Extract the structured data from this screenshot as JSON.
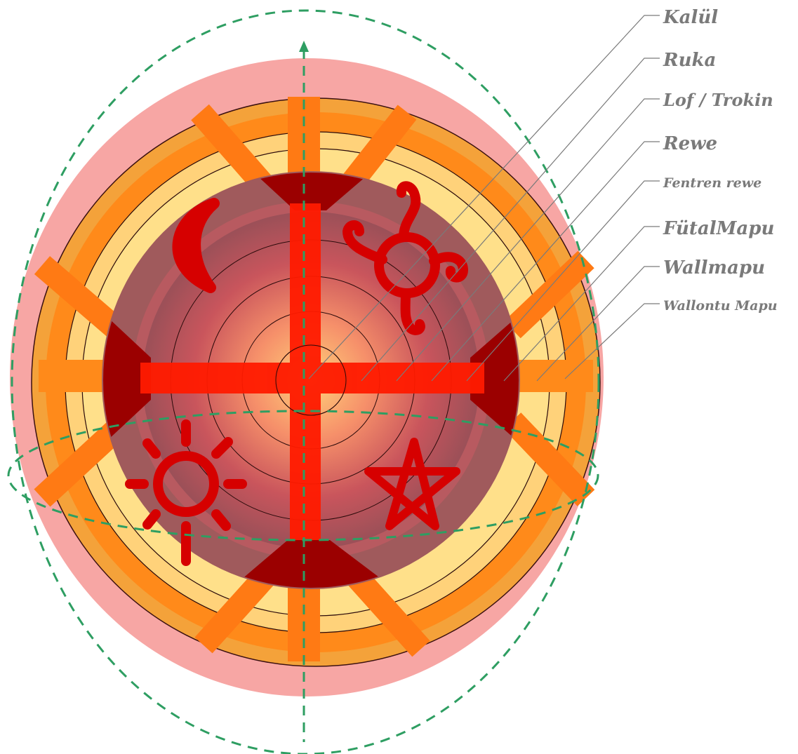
{
  "diagram": {
    "labels": [
      {
        "id": "kalul",
        "text": "Kalül"
      },
      {
        "id": "ruka",
        "text": "Ruka"
      },
      {
        "id": "lof",
        "text": "Lof / Trokin"
      },
      {
        "id": "rewe",
        "text": "Rewe"
      },
      {
        "id": "fentren",
        "text": "Fentren rewe"
      },
      {
        "id": "futal",
        "text": "FütalMapu"
      },
      {
        "id": "wallmapu",
        "text": "Wallmapu"
      },
      {
        "id": "wallontu",
        "text": "Wallontu Mapu"
      }
    ],
    "symbols": [
      "moon-icon",
      "spiral-icon",
      "sun-icon",
      "star-icon"
    ],
    "colors": {
      "halo": "#f7a6a4",
      "outer_ring": "#ff8a1a",
      "ring_light": "#ffe08a",
      "inner_disc": "#a05a5c",
      "cross": "#ff1a00",
      "dark_red": "#9b0000",
      "symbol_red": "#d60000",
      "guide_green": "#2e9e62",
      "leader_grey": "#7a7a7a"
    }
  }
}
